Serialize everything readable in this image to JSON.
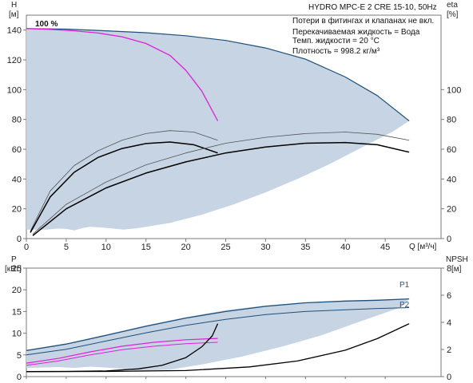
{
  "header": {
    "title": "HYDRO MPC-E 2 CRE 15-10, 50Hz",
    "notes": [
      "Потери в фитингах и клапанах не вкл.",
      "Перекачиваемая жидкость = Вода",
      "Темп. жидкости = 20 °C",
      "Плотность = 998.2 кг/м³"
    ]
  },
  "colors": {
    "envelope_fill": "#c6d4e4",
    "curve_blue": "#1d4f7c",
    "curve_magenta": "#e020d8",
    "curve_black": "#000000",
    "curve_grey": "#555555",
    "frame": "#7a7a7a"
  },
  "chart_data": [
    {
      "type": "line",
      "name": "qh_eta",
      "left_axis": {
        "label_lines": [
          "H",
          "[м]"
        ],
        "range": [
          0,
          150
        ],
        "ticks": [
          "0",
          "20",
          "40",
          "60",
          "80",
          "100",
          "120",
          "140"
        ],
        "values": [
          0,
          20,
          40,
          60,
          80,
          100,
          120,
          140
        ]
      },
      "right_axis": {
        "label_lines": [
          "eta",
          "[%]"
        ],
        "range": [
          0,
          150
        ],
        "ticks": [
          "0",
          "20",
          "40",
          "60",
          "80",
          "100"
        ],
        "values": [
          0,
          20,
          40,
          60,
          80,
          100
        ]
      },
      "x_axis": {
        "label": "Q [м³/ч]",
        "range": [
          0,
          52
        ],
        "ticks": [
          "0",
          "5",
          "10",
          "15",
          "20",
          "25",
          "30",
          "35",
          "40",
          "45"
        ],
        "values": [
          0,
          5,
          10,
          15,
          20,
          25,
          30,
          35,
          40,
          45
        ]
      },
      "annotation": "100 %",
      "envelope": [
        [
          0,
          141
        ],
        [
          5,
          140.6
        ],
        [
          10,
          139.5
        ],
        [
          15,
          138.2
        ],
        [
          20,
          136.2
        ],
        [
          25,
          133
        ],
        [
          30,
          128
        ],
        [
          35,
          120.5
        ],
        [
          40,
          108.5
        ],
        [
          44,
          96
        ],
        [
          48,
          79
        ],
        [
          46,
          72
        ],
        [
          42,
          61
        ],
        [
          38,
          50
        ],
        [
          34,
          40
        ],
        [
          30,
          31
        ],
        [
          26,
          23
        ],
        [
          22,
          16
        ],
        [
          18,
          10.5
        ],
        [
          14,
          7
        ],
        [
          12.2,
          6
        ],
        [
          10,
          7.2
        ],
        [
          8,
          8
        ],
        [
          7,
          7
        ],
        [
          6,
          5.5
        ],
        [
          5,
          6.5
        ],
        [
          4,
          6.7
        ],
        [
          2.5,
          6
        ],
        [
          1,
          6
        ],
        [
          0,
          6
        ]
      ],
      "series": [
        {
          "role": "max_head",
          "points": [
            [
              0,
              141
            ],
            [
              5,
              140.6
            ],
            [
              10,
              139.5
            ],
            [
              15,
              138.2
            ],
            [
              20,
              136.2
            ],
            [
              25,
              133
            ],
            [
              30,
              128
            ],
            [
              35,
              120.5
            ],
            [
              40,
              108.5
            ],
            [
              44,
              96
            ],
            [
              48,
              79
            ]
          ]
        },
        {
          "role": "head_100pct",
          "points": [
            [
              0,
              141
            ],
            [
              3,
              140.4
            ],
            [
              6,
              139.5
            ],
            [
              9,
              138
            ],
            [
              12,
              135.5
            ],
            [
              15,
              131
            ],
            [
              18,
              123
            ],
            [
              20,
              113
            ],
            [
              22,
              99
            ],
            [
              24,
              79
            ]
          ]
        },
        {
          "role": "eta_one_pump_upper",
          "points": [
            [
              0.5,
              5
            ],
            [
              3,
              32
            ],
            [
              6,
              49
            ],
            [
              9,
              59
            ],
            [
              12,
              66
            ],
            [
              15,
              70.5
            ],
            [
              18,
              72.5
            ],
            [
              21,
              71.5
            ],
            [
              24,
              66
            ]
          ]
        },
        {
          "role": "eta_one_pump",
          "points": [
            [
              0.5,
              4
            ],
            [
              3,
              28
            ],
            [
              6,
              44.5
            ],
            [
              9,
              54.5
            ],
            [
              12,
              60.5
            ],
            [
              15,
              63.8
            ],
            [
              18,
              64.8
            ],
            [
              21,
              63
            ],
            [
              24,
              57.5
            ]
          ]
        },
        {
          "role": "eta_two_pumps_upper",
          "points": [
            [
              0.8,
              3
            ],
            [
              5,
              23
            ],
            [
              10,
              38
            ],
            [
              15,
              49.5
            ],
            [
              20,
              57.5
            ],
            [
              25,
              64
            ],
            [
              30,
              68
            ],
            [
              35,
              70.5
            ],
            [
              40,
              71.5
            ],
            [
              44,
              70
            ],
            [
              48,
              66
            ]
          ]
        },
        {
          "role": "eta_two_pumps",
          "points": [
            [
              0.8,
              2
            ],
            [
              5,
              20
            ],
            [
              10,
              34
            ],
            [
              15,
              44
            ],
            [
              20,
              51.5
            ],
            [
              25,
              57.5
            ],
            [
              30,
              61.5
            ],
            [
              35,
              64
            ],
            [
              40,
              64.5
            ],
            [
              44,
              63
            ],
            [
              48,
              58
            ]
          ]
        }
      ]
    },
    {
      "type": "line",
      "name": "power_npsh",
      "left_axis": {
        "label_lines": [
          "P",
          "[кВт]"
        ],
        "range": [
          0,
          25
        ],
        "ticks": [
          "0",
          "5",
          "10",
          "15",
          "20",
          "25"
        ],
        "values": [
          0,
          5,
          10,
          15,
          20,
          25
        ]
      },
      "right_axis": {
        "label_lines": [
          "NPSH",
          "[м]"
        ],
        "range": [
          0,
          8
        ],
        "ticks": [
          "0",
          "2",
          "4",
          "6",
          "8"
        ],
        "values": [
          0,
          2,
          4,
          6,
          8
        ]
      },
      "x_axis": {
        "range": [
          0,
          52
        ]
      },
      "envelope": [
        [
          0,
          6.2
        ],
        [
          5,
          7.6
        ],
        [
          10,
          9.7
        ],
        [
          15,
          11.8
        ],
        [
          20,
          13.7
        ],
        [
          25,
          15.3
        ],
        [
          30,
          16.4
        ],
        [
          35,
          17.1
        ],
        [
          40,
          17.5
        ],
        [
          44,
          17.7
        ],
        [
          48,
          17.9
        ],
        [
          47,
          16
        ],
        [
          42,
          12.8
        ],
        [
          37,
          9.5
        ],
        [
          32,
          6.9
        ],
        [
          27,
          4.6
        ],
        [
          22,
          2.8
        ],
        [
          18,
          1.6
        ],
        [
          14,
          1.3
        ],
        [
          12,
          1.8
        ],
        [
          10,
          2.1
        ],
        [
          8,
          2.3
        ],
        [
          6,
          2
        ],
        [
          4,
          2.2
        ],
        [
          2,
          2.1
        ],
        [
          0,
          2
        ]
      ],
      "series": [
        {
          "name": "P1",
          "points": [
            [
              0,
              6
            ],
            [
              5,
              7.5
            ],
            [
              10,
              9.5
            ],
            [
              15,
              11.6
            ],
            [
              20,
              13.5
            ],
            [
              25,
              15
            ],
            [
              30,
              16.2
            ],
            [
              35,
              17
            ],
            [
              40,
              17.4
            ],
            [
              44,
              17.6
            ],
            [
              48,
              17.9
            ]
          ]
        },
        {
          "name": "P2",
          "points": [
            [
              0,
              5
            ],
            [
              5,
              6.3
            ],
            [
              10,
              8.2
            ],
            [
              15,
              10.1
            ],
            [
              20,
              11.8
            ],
            [
              25,
              13.2
            ],
            [
              30,
              14.3
            ],
            [
              35,
              15
            ],
            [
              40,
              15.4
            ],
            [
              44,
              15.7
            ],
            [
              48,
              15.9
            ]
          ]
        },
        {
          "role": "p1_one_pump",
          "points": [
            [
              0,
              3.1
            ],
            [
              4,
              4.2
            ],
            [
              8,
              5.7
            ],
            [
              12,
              7
            ],
            [
              16,
              7.9
            ],
            [
              20,
              8.5
            ],
            [
              24,
              8.8
            ]
          ]
        },
        {
          "role": "p2_one_pump",
          "points": [
            [
              0,
              2.6
            ],
            [
              4,
              3.6
            ],
            [
              8,
              5
            ],
            [
              12,
              6.2
            ],
            [
              16,
              7
            ],
            [
              20,
              7.6
            ],
            [
              24,
              7.9
            ]
          ]
        },
        {
          "role": "npsh_one_pump",
          "unit": "м",
          "points": [
            [
              0,
              0.37
            ],
            [
              5,
              0.38
            ],
            [
              10,
              0.42
            ],
            [
              14,
              0.57
            ],
            [
              17,
              0.83
            ],
            [
              20,
              1.4
            ],
            [
              22,
              2.2
            ],
            [
              23.3,
              3
            ],
            [
              24,
              3.9
            ]
          ]
        },
        {
          "role": "npsh_two_pumps",
          "unit": "м",
          "points": [
            [
              0,
              0.37
            ],
            [
              10,
              0.38
            ],
            [
              20,
              0.45
            ],
            [
              28,
              0.72
            ],
            [
              34,
              1.15
            ],
            [
              40,
              1.95
            ],
            [
              44,
              2.8
            ],
            [
              48,
              3.9
            ]
          ]
        }
      ]
    }
  ]
}
